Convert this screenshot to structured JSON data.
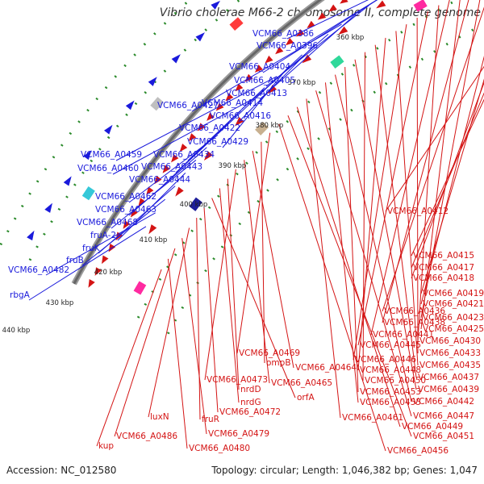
{
  "header": {
    "title": "Vibrio cholerae M66-2 chromosome II, complete genome"
  },
  "footer": {
    "accession": "Accession: NC_012580",
    "summary": "Topology: circular; Length: 1,046,382 bp; Genes: 1,047"
  },
  "scale_ticks": [
    "360 kbp",
    "370 kbp",
    "380 kbp",
    "390 kbp",
    "400 kbp",
    "410 kbp",
    "420 kbp",
    "430 kbp",
    "440 kbp"
  ],
  "blue_labels": [
    "VCM66_A0386",
    "VCM66_A0396",
    "VCM66_A0404",
    "VCM66_A0405",
    "VCM66_A0413",
    "VCM66_A0427",
    "VCM66_A0414",
    "VCM66_A0416",
    "VCM66_A0422",
    "VCM66_A0429",
    "VCM66_A0459",
    "VCM66_A0434",
    "VCM66_A0460",
    "VCM66_A0443",
    "VCM66_A0444",
    "VCM66_A0462",
    "VCM66_A0463",
    "VCM66_A0468",
    "fruA-2",
    "fruK",
    "fruB",
    "VCM66_A0482",
    "rbgA"
  ],
  "red_labels": [
    "VCM66_A0412",
    "VCM66_A0415",
    "VCM66_A0417",
    "VCM66_A0418",
    "VCM66_A0419",
    "VCM66_A0421",
    "VCM66_A0436",
    "VCM66_A0423",
    "VCM66_A0438",
    "VCM66_A0425",
    "VCM66_A0441",
    "VCM66_A0430",
    "VCM66_A0445",
    "VCM66_A0433",
    "VCM66_A0446",
    "VCM66_A0435",
    "VCM66_A0448",
    "VCM66_A0437",
    "VCM66_A0450",
    "VCM66_A0439",
    "VCM66_A0453",
    "VCM66_A0442",
    "VCM66_A0455",
    "VCM66_A0447",
    "VCM66_A0461",
    "VCM66_A0449",
    "VCM66_A0451",
    "VCM66_A0456",
    "VCM66_A0469",
    "ompB",
    "VCM66_A0464",
    "VCM66_A0465",
    "VCM66_A0473",
    "nrdD",
    "nrdG",
    "orfA",
    "VCM66_A0472",
    "fruR",
    "luxN",
    "VCM66_A0479",
    "VCM66_A0486",
    "VCM66_A0480",
    "kup"
  ],
  "colors": {
    "forward": "#1a1adb",
    "reverse": "#d41414",
    "backbone": "#666666",
    "gc_skew": "#2a8a2a"
  }
}
